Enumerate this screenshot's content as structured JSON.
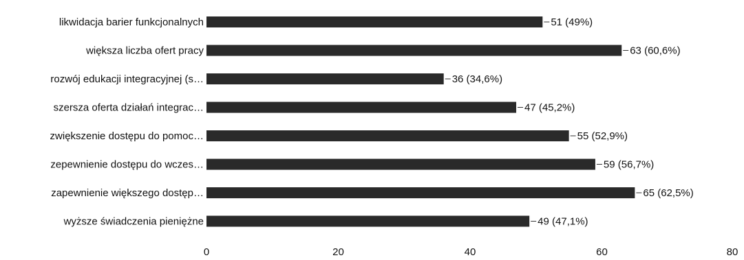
{
  "chart_data": {
    "type": "bar",
    "orientation": "horizontal",
    "categories": [
      "likwidacja barier funkcjonalnych",
      "większa liczba ofert pracy",
      "rozwój edukacji integracyjnej (s…",
      "szersza oferta działań integrac…",
      "zwiększenie dostępu do pomoc…",
      "zepewnienie dostępu do wczes…",
      "zapewnienie większego dostęp…",
      "wyższe świadczenia pieniężne"
    ],
    "values": [
      51,
      63,
      36,
      47,
      55,
      59,
      65,
      49
    ],
    "value_labels": [
      "51 (49%)",
      "63 (60,6%)",
      "36 (34,6%)",
      "47 (45,2%)",
      "55 (52,9%)",
      "59 (56,7%)",
      "65 (62,5%)",
      "49 (47,1%)"
    ],
    "x_ticks": [
      "0",
      "20",
      "40",
      "60",
      "80"
    ],
    "xlim": [
      0,
      80
    ],
    "title": "",
    "xlabel": "",
    "ylabel": "",
    "grid": false,
    "legend": "none",
    "colors": {
      "bar": "#2a2a2a",
      "text": "#111111",
      "connector": "#333333"
    }
  }
}
